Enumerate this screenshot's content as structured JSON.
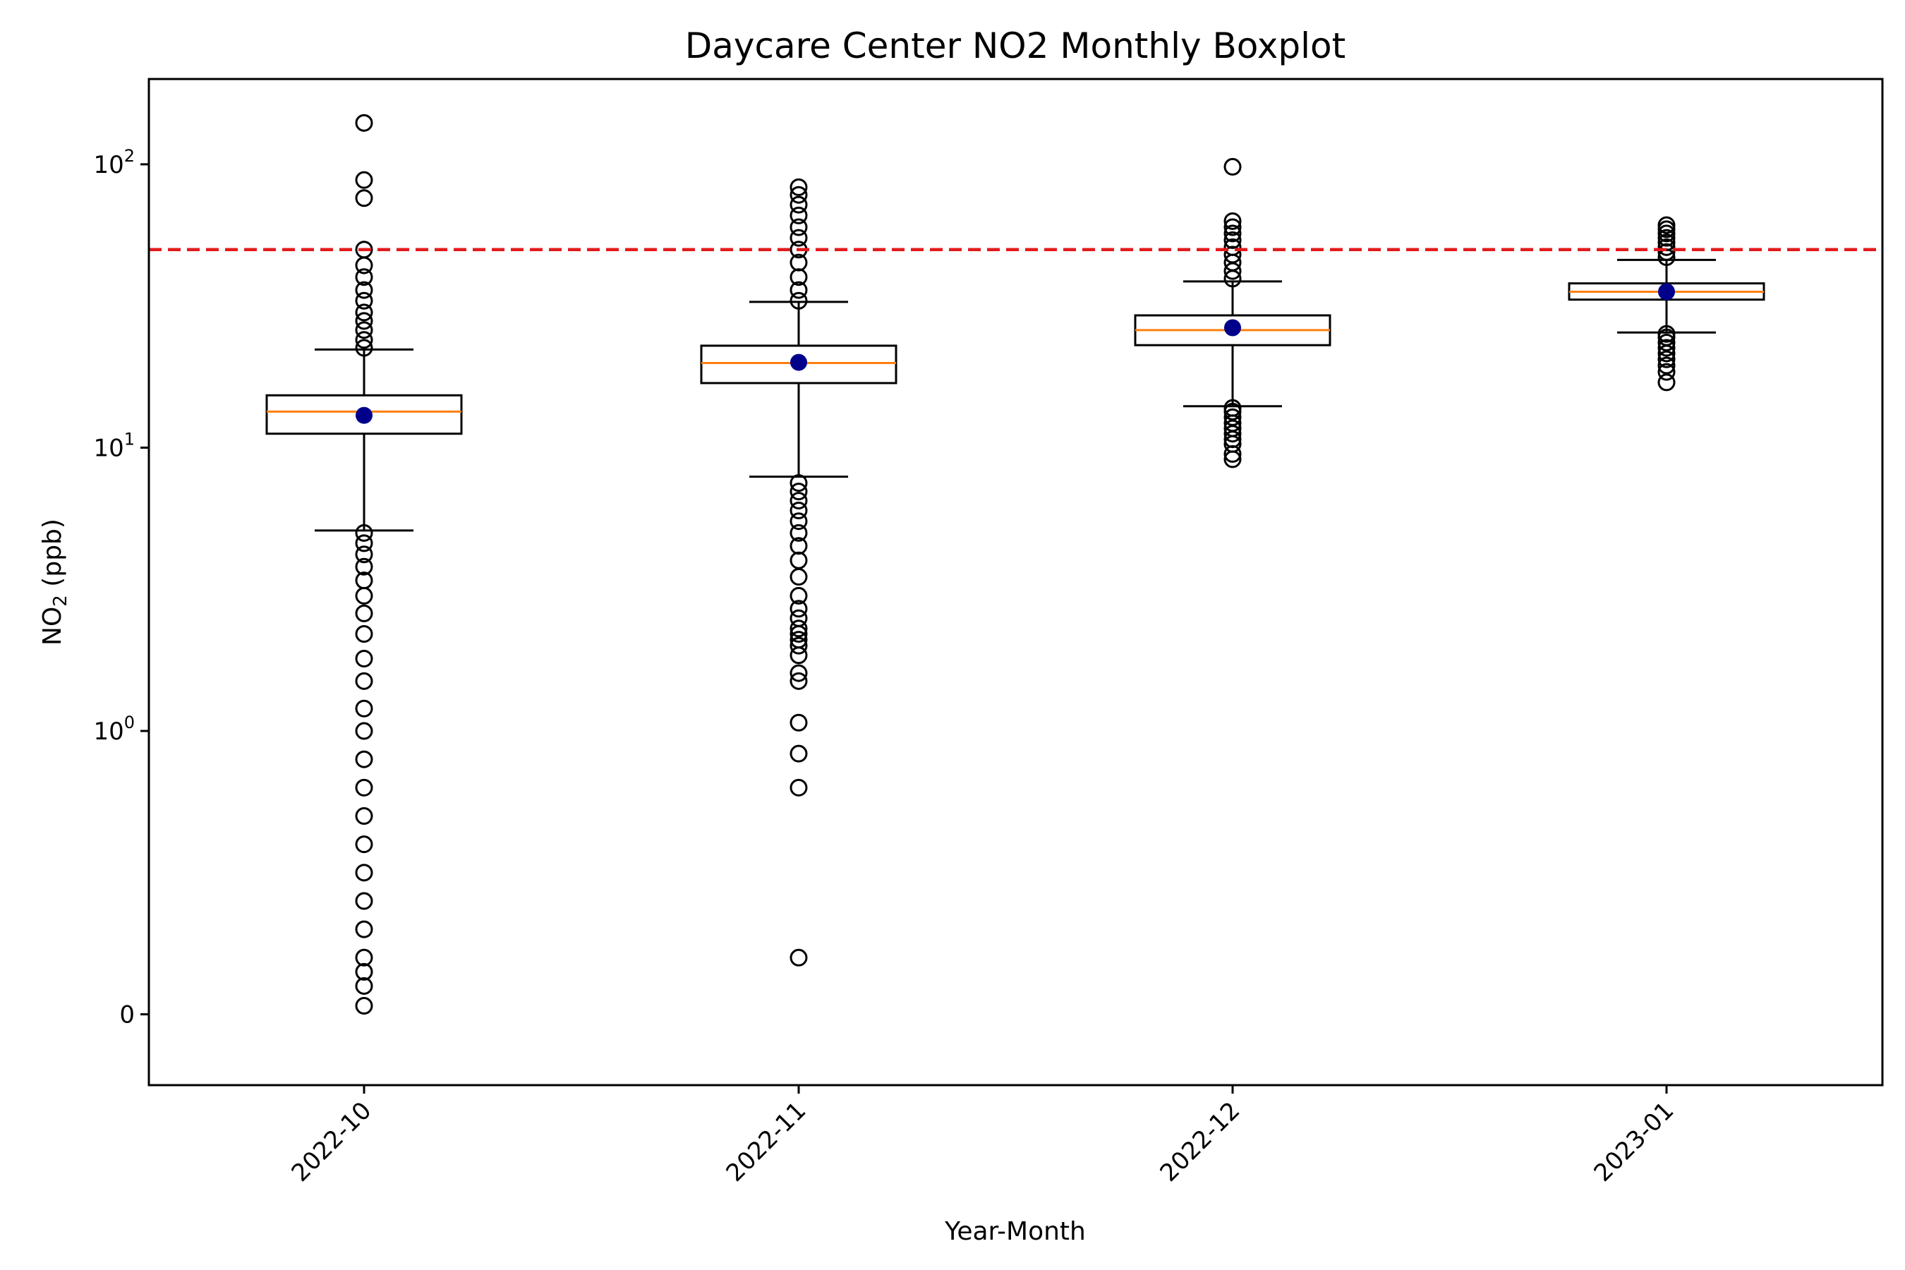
{
  "chart_data": {
    "type": "boxplot",
    "title": "Daycare Center NO2 Monthly Boxplot",
    "xlabel": "Year-Month",
    "ylabel": {
      "base": "NO",
      "subscript": "2",
      "rest": " (ppb)"
    },
    "y_scale": "symlog",
    "y_linthresh": 1,
    "ylim": [
      -0.25,
      200
    ],
    "y_ticks": [
      {
        "value": 0,
        "base": "0",
        "exp": ""
      },
      {
        "value": 1,
        "base": "10",
        "exp": "0"
      },
      {
        "value": 10,
        "base": "10",
        "exp": "1"
      },
      {
        "value": 100,
        "base": "10",
        "exp": "2"
      }
    ],
    "categories": [
      "2022-10",
      "2022-11",
      "2022-12",
      "2023-01"
    ],
    "reference_line": {
      "value": 50,
      "color": "#e31a1c",
      "style": "dashed"
    },
    "colors": {
      "median": "#ff7f0e",
      "mean": "#00008b",
      "box": "#000000"
    },
    "boxes": [
      {
        "label": "2022-10",
        "whisker_low": 5.1,
        "q1": 11.2,
        "median": 13.4,
        "q3": 15.3,
        "whisker_high": 22.2,
        "mean": 13.0,
        "outliers": [
          0.03,
          0.1,
          0.15,
          0.2,
          0.3,
          0.4,
          0.5,
          0.6,
          0.7,
          0.8,
          0.9,
          1.0,
          1.2,
          1.5,
          1.8,
          2.2,
          2.6,
          3.0,
          3.4,
          3.8,
          4.2,
          4.6,
          5.0,
          22.5,
          24,
          26,
          28,
          30,
          33,
          36,
          40,
          44,
          50,
          76,
          88,
          140
        ]
      },
      {
        "label": "2022-11",
        "whisker_low": 7.9,
        "q1": 16.9,
        "median": 19.9,
        "q3": 22.9,
        "whisker_high": 32.7,
        "mean": 20.0,
        "outliers": [
          0.2,
          0.8,
          0.92,
          1.07,
          1.5,
          1.6,
          1.85,
          2.0,
          2.1,
          2.2,
          2.3,
          2.5,
          2.7,
          3.0,
          3.5,
          4.0,
          4.5,
          5.0,
          5.5,
          6.0,
          6.5,
          7.0,
          7.5,
          33,
          36,
          40,
          45,
          50,
          55,
          60,
          66,
          72,
          78,
          83
        ]
      },
      {
        "label": "2022-12",
        "whisker_low": 14.0,
        "q1": 23.0,
        "median": 26.0,
        "q3": 29.3,
        "whisker_high": 38.6,
        "mean": 26.5,
        "outliers": [
          9.1,
          9.5,
          10.3,
          10.7,
          11.2,
          11.7,
          12.2,
          12.8,
          13.4,
          13.8,
          39.5,
          42,
          45,
          48,
          51,
          54,
          57,
          60,
          63,
          98
        ]
      },
      {
        "label": "2023-01",
        "whisker_low": 25.5,
        "q1": 33.3,
        "median": 35.5,
        "q3": 38.0,
        "whisker_high": 46.0,
        "mean": 35.5,
        "outliers": [
          17.0,
          18.5,
          19.5,
          20.5,
          21.5,
          22.5,
          23.5,
          24.5,
          25.2,
          47,
          49,
          51,
          53,
          55,
          57,
          59,
          61
        ]
      }
    ]
  }
}
